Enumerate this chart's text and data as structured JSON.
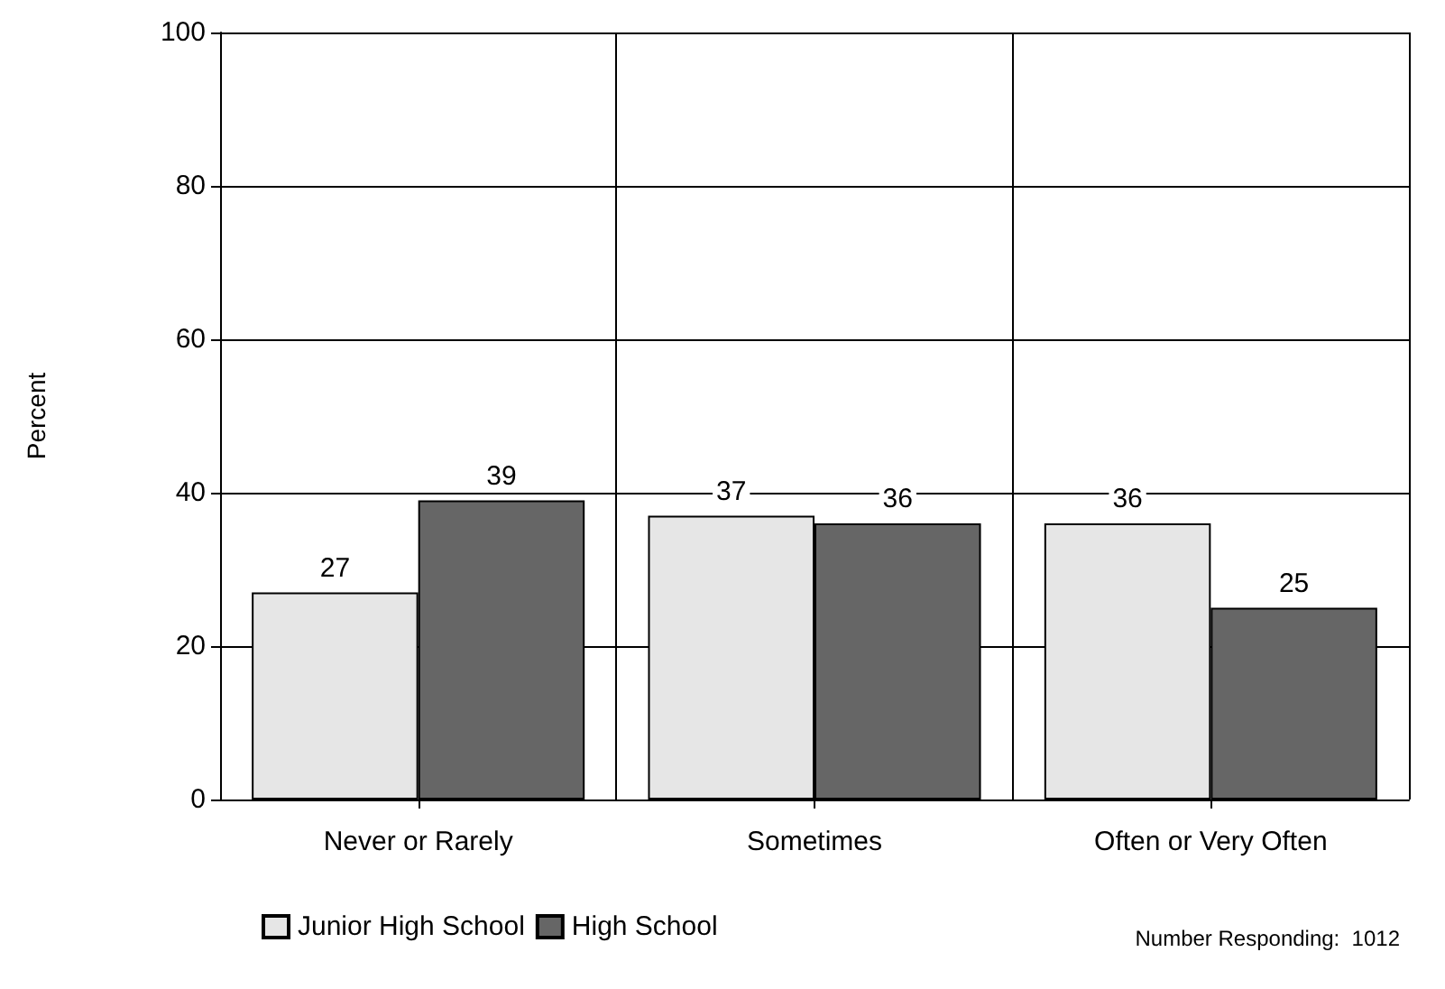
{
  "chart_data": {
    "type": "bar",
    "ylabel": "Percent",
    "categories": [
      "Never or Rarely",
      "Sometimes",
      "Often or Very Often"
    ],
    "series": [
      {
        "name": "Junior High School",
        "color": "#e6e6e6",
        "values": [
          27,
          37,
          36
        ]
      },
      {
        "name": "High School",
        "color": "#666666",
        "values": [
          39,
          36,
          25
        ]
      }
    ],
    "ylim": [
      0,
      100
    ],
    "yticks": [
      0,
      20,
      40,
      60,
      80,
      100
    ],
    "grid": true,
    "legend": "bottom left",
    "data_labels": true,
    "annotations": [
      "Number Responding:  1012"
    ]
  }
}
